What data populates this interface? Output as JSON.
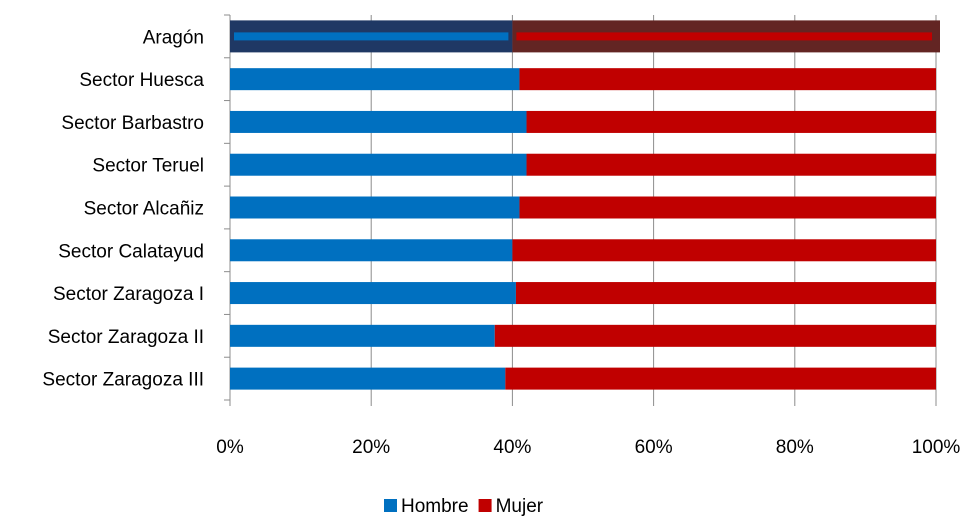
{
  "chart_data": {
    "type": "bar",
    "orientation": "horizontal",
    "stacked": "percent",
    "categories": [
      "Aragón",
      "Sector Huesca",
      "Sector Barbastro",
      "Sector Teruel",
      "Sector Alcañiz",
      "Sector Calatayud",
      "Sector Zaragoza I",
      "Sector Zaragoza II",
      "Sector Zaragoza III"
    ],
    "series": [
      {
        "name": "Hombre",
        "color": "#0070C0",
        "values": [
          40,
          41,
          42,
          42,
          41,
          40,
          40.5,
          37.5,
          39
        ]
      },
      {
        "name": "Mujer",
        "color": "#C00000",
        "values": [
          60,
          59,
          58,
          58,
          59,
          60,
          59.5,
          62.5,
          61
        ]
      }
    ],
    "highlighted_category": "Aragón",
    "highlight_colors": {
      "Hombre": "#1F3864",
      "Mujer": "#632523"
    },
    "xlim": [
      0,
      100
    ],
    "xticks": [
      "0%",
      "20%",
      "40%",
      "60%",
      "80%",
      "100%"
    ],
    "grid": true,
    "legend": "bottom",
    "title": "",
    "xlabel": "",
    "ylabel": ""
  }
}
